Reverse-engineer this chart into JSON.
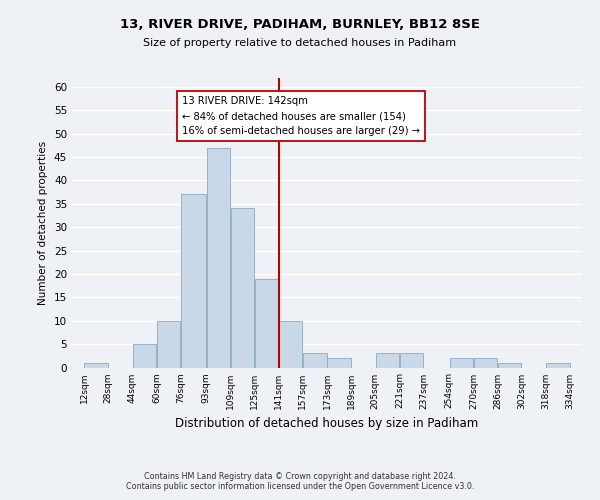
{
  "title": "13, RIVER DRIVE, PADIHAM, BURNLEY, BB12 8SE",
  "subtitle": "Size of property relative to detached houses in Padiham",
  "xlabel": "Distribution of detached houses by size in Padiham",
  "ylabel": "Number of detached properties",
  "bin_labels": [
    "12sqm",
    "28sqm",
    "44sqm",
    "60sqm",
    "76sqm",
    "93sqm",
    "109sqm",
    "125sqm",
    "141sqm",
    "157sqm",
    "173sqm",
    "189sqm",
    "205sqm",
    "221sqm",
    "237sqm",
    "254sqm",
    "270sqm",
    "286sqm",
    "302sqm",
    "318sqm",
    "334sqm"
  ],
  "tick_positions": [
    12,
    28,
    44,
    60,
    76,
    93,
    109,
    125,
    141,
    157,
    173,
    189,
    205,
    221,
    237,
    254,
    270,
    286,
    302,
    318,
    334
  ],
  "counts": [
    1,
    0,
    5,
    10,
    37,
    47,
    34,
    19,
    10,
    3,
    2,
    0,
    3,
    3,
    0,
    2,
    2,
    1,
    0,
    1
  ],
  "bar_color": "#c8d8e8",
  "bar_edge_color": "#8aaac0",
  "vline_x": 141,
  "vline_color": "#bb0000",
  "annotation_title": "13 RIVER DRIVE: 142sqm",
  "annotation_line1": "← 84% of detached houses are smaller (154)",
  "annotation_line2": "16% of semi-detached houses are larger (29) →",
  "annotation_box_color": "#ffffff",
  "annotation_box_edge": "#bb0000",
  "ylim": [
    0,
    62
  ],
  "yticks": [
    0,
    5,
    10,
    15,
    20,
    25,
    30,
    35,
    40,
    45,
    50,
    55,
    60
  ],
  "footer1": "Contains HM Land Registry data © Crown copyright and database right 2024.",
  "footer2": "Contains public sector information licensed under the Open Government Licence v3.0.",
  "bg_color": "#eef2f7"
}
